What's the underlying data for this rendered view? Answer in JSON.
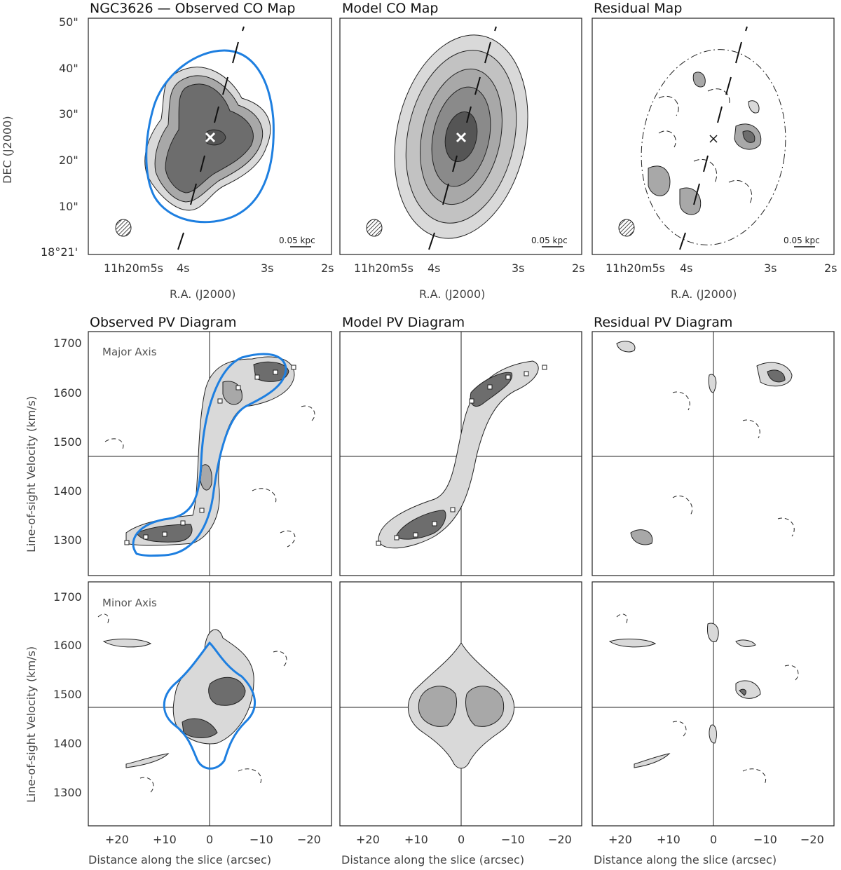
{
  "panels": {
    "obs_map": "NGC3626 — Observed CO Map",
    "model_map": "Model CO Map",
    "resid_map": "Residual Map",
    "obs_pv": "Observed PV Diagram",
    "model_pv": "Model PV Diagram",
    "resid_pv": "Residual PV Diagram"
  },
  "map_axes": {
    "xlabel": "R.A. (J2000)",
    "ylabel": "DEC (J2000)",
    "dec_ticks": [
      "50\"",
      "40\"",
      "30\"",
      "20\"",
      "10\""
    ],
    "dec_origin": "18°21'",
    "ra_ticks": [
      "11h20m5s",
      "4s",
      "3s",
      "2s"
    ],
    "scalebar": "0.05 kpc"
  },
  "pv_axes": {
    "ylabel": "Line-of-sight Velocity (km/s)",
    "xlabel": "Distance along the slice (arcsec)",
    "y_ticks": [
      "1700",
      "1600",
      "1500",
      "1400",
      "1300"
    ],
    "x_ticks": [
      "+20",
      "+10",
      "0",
      "−10",
      "−20"
    ],
    "major_label": "Major Axis",
    "minor_label": "Minor Axis"
  },
  "colors": {
    "model_outline": "#1e7fe0",
    "dark_fill": "#6d6d6d",
    "mid_fill": "#a8a8a8",
    "light_fill": "#d9d9d9"
  }
}
